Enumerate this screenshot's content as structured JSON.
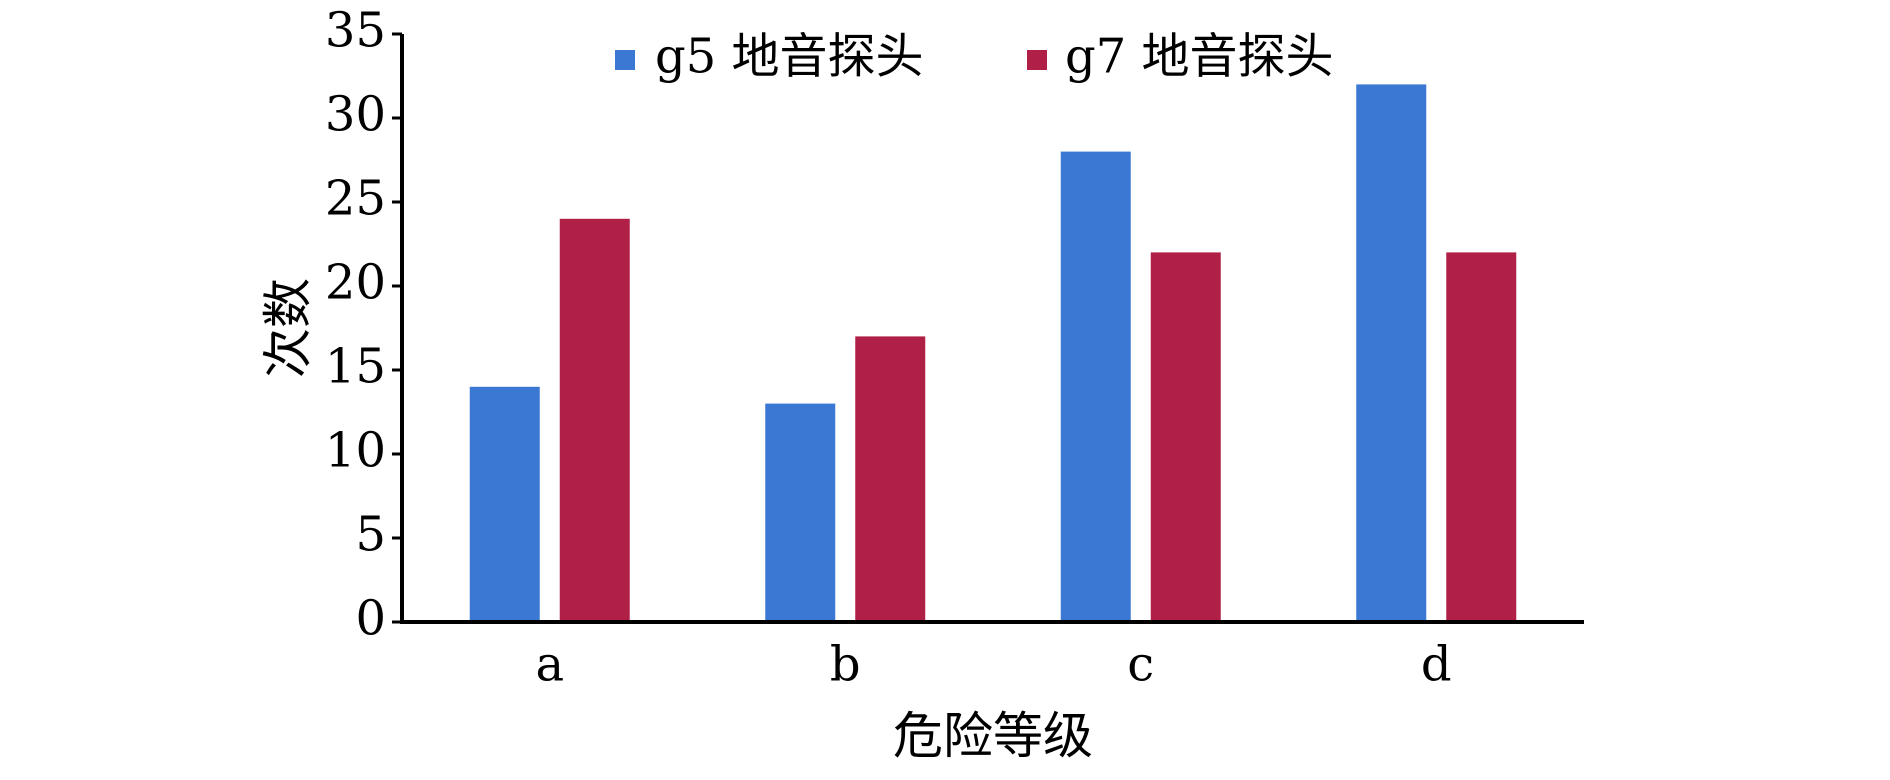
{
  "chart_data": {
    "type": "bar",
    "categories": [
      "a",
      "b",
      "c",
      "d"
    ],
    "series": [
      {
        "name": "g5 地音探头",
        "color": "#3A78D4",
        "values": [
          14,
          13,
          28,
          32
        ]
      },
      {
        "name": "g7 地音探头",
        "color": "#B02046",
        "values": [
          24,
          17,
          22,
          22
        ]
      }
    ],
    "xlabel": "危险等级",
    "ylabel": "次数",
    "ylim": [
      0,
      35
    ],
    "yticks": [
      0,
      5,
      10,
      15,
      20,
      25,
      30,
      35
    ],
    "grid": false,
    "legend": "top-center"
  }
}
